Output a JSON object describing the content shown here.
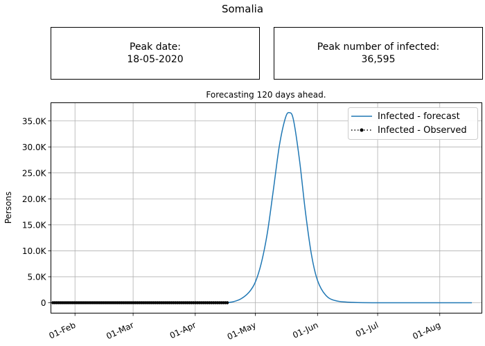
{
  "figure_title": "Somalia",
  "info_boxes": {
    "peak_date_label": "Peak date:",
    "peak_date_value": "18-05-2020",
    "peak_infected_label": "Peak number of infected:",
    "peak_infected_value": "36,595"
  },
  "chart_data": {
    "type": "line",
    "title": "Forecasting 120 days ahead.",
    "xlabel": "",
    "ylabel": "Persons",
    "x_range": [
      "2020-01-20",
      "2020-08-22"
    ],
    "ylim": [
      -2000,
      38500
    ],
    "grid": true,
    "legend_position": "top-right",
    "x_ticks": [
      {
        "date": "2020-02-01",
        "label": "01-Feb"
      },
      {
        "date": "2020-03-01",
        "label": "01-Mar"
      },
      {
        "date": "2020-04-01",
        "label": "01-Apr"
      },
      {
        "date": "2020-05-01",
        "label": "01-May"
      },
      {
        "date": "2020-06-01",
        "label": "01-Jun"
      },
      {
        "date": "2020-07-01",
        "label": "01-Jul"
      },
      {
        "date": "2020-08-01",
        "label": "01-Aug"
      }
    ],
    "y_ticks": [
      {
        "value": 0,
        "label": "0"
      },
      {
        "value": 5000,
        "label": "5.0K"
      },
      {
        "value": 10000,
        "label": "10.0K"
      },
      {
        "value": 15000,
        "label": "15.0K"
      },
      {
        "value": 20000,
        "label": "20.0K"
      },
      {
        "value": 25000,
        "label": "25.0K"
      },
      {
        "value": 30000,
        "label": "30.0K"
      },
      {
        "value": 35000,
        "label": "35.0K"
      }
    ],
    "series": [
      {
        "name": "Infected - forecast",
        "color": "#1f77b4",
        "style": "solid",
        "points": [
          {
            "x": "2020-04-16",
            "y": 0
          },
          {
            "x": "2020-04-20",
            "y": 200
          },
          {
            "x": "2020-04-24",
            "y": 800
          },
          {
            "x": "2020-04-28",
            "y": 2100
          },
          {
            "x": "2020-05-01",
            "y": 4000
          },
          {
            "x": "2020-05-04",
            "y": 7700
          },
          {
            "x": "2020-05-07",
            "y": 13500
          },
          {
            "x": "2020-05-10",
            "y": 21800
          },
          {
            "x": "2020-05-13",
            "y": 30300
          },
          {
            "x": "2020-05-16",
            "y": 35600
          },
          {
            "x": "2020-05-18",
            "y": 36595
          },
          {
            "x": "2020-05-20",
            "y": 35200
          },
          {
            "x": "2020-05-23",
            "y": 27500
          },
          {
            "x": "2020-05-26",
            "y": 17400
          },
          {
            "x": "2020-05-29",
            "y": 9200
          },
          {
            "x": "2020-06-01",
            "y": 4300
          },
          {
            "x": "2020-06-05",
            "y": 1500
          },
          {
            "x": "2020-06-10",
            "y": 400
          },
          {
            "x": "2020-06-20",
            "y": 50
          },
          {
            "x": "2020-07-10",
            "y": 0
          },
          {
            "x": "2020-08-17",
            "y": 0
          }
        ]
      },
      {
        "name": "Infected - Observed",
        "color": "#000000",
        "style": "dotted-markers",
        "start": "2020-01-21",
        "end": "2020-04-17",
        "values_note": "",
        "values": [
          0
        ]
      }
    ]
  }
}
